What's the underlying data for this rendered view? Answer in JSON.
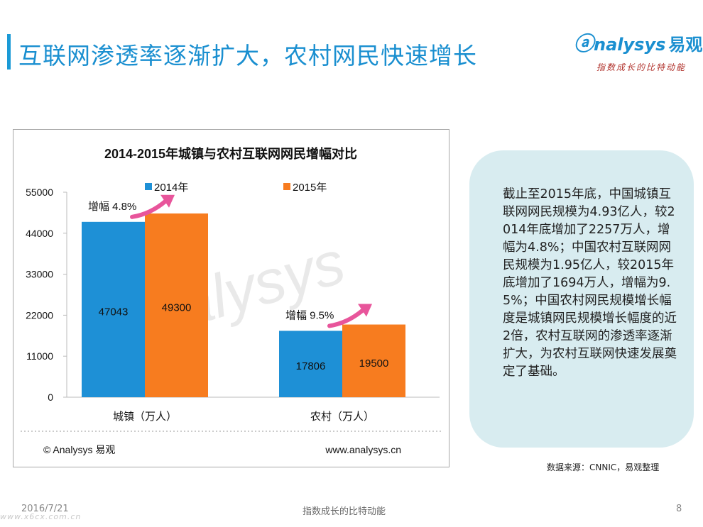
{
  "header": {
    "title": "互联网渗透率逐渐扩大，农村网民快速增长"
  },
  "logo": {
    "brand": "nalysys",
    "brand_cn": "易观",
    "tagline": "指数成长的比特动能"
  },
  "chart_data": {
    "type": "bar",
    "title": "2014-2015年城镇与农村互联网网民增幅对比",
    "categories": [
      "城镇（万人）",
      "农村（万人）"
    ],
    "series": [
      {
        "name": "2014年",
        "values": [
          47043,
          17806
        ],
        "color": "#1e90d6"
      },
      {
        "name": "2015年",
        "values": [
          49300,
          19500
        ],
        "color": "#f77c1f"
      }
    ],
    "ylim": [
      0,
      55000
    ],
    "yticks": [
      0,
      11000,
      22000,
      33000,
      44000,
      55000
    ],
    "grid": false,
    "legend": "top",
    "annotations": [
      "增幅 4.8%",
      "增幅 9.5%"
    ],
    "watermark": "analysys",
    "copyright": "© Analysys 易观",
    "website": "www.analysys.cn"
  },
  "callout": {
    "text": "截止至2015年底，中国城镇互联网网民规模为4.93亿人，较2014年底增加了2257万人，增幅为4.8%；中国农村互联网网民规模为1.95亿人，较2015年底增加了1694万人，增幅为9.5%；中国农村网民规模增长幅度是城镇网民规模增长幅度的近2倍，农村互联网的渗透率逐渐扩大，为农村互联网快速发展奠定了基础。"
  },
  "source": "数据来源：CNNIC，易观整理",
  "footer": {
    "date": "2016/7/21",
    "center": "指数成长的比特动能",
    "page": "8",
    "site_watermark": "www.x6cx.com.cn"
  },
  "colors": {
    "accent": "#1a8fd0",
    "bar_2014": "#1e90d6",
    "bar_2015": "#f77c1f",
    "arrow": "#e8559b",
    "callout_bg": "#d8ecf0"
  }
}
